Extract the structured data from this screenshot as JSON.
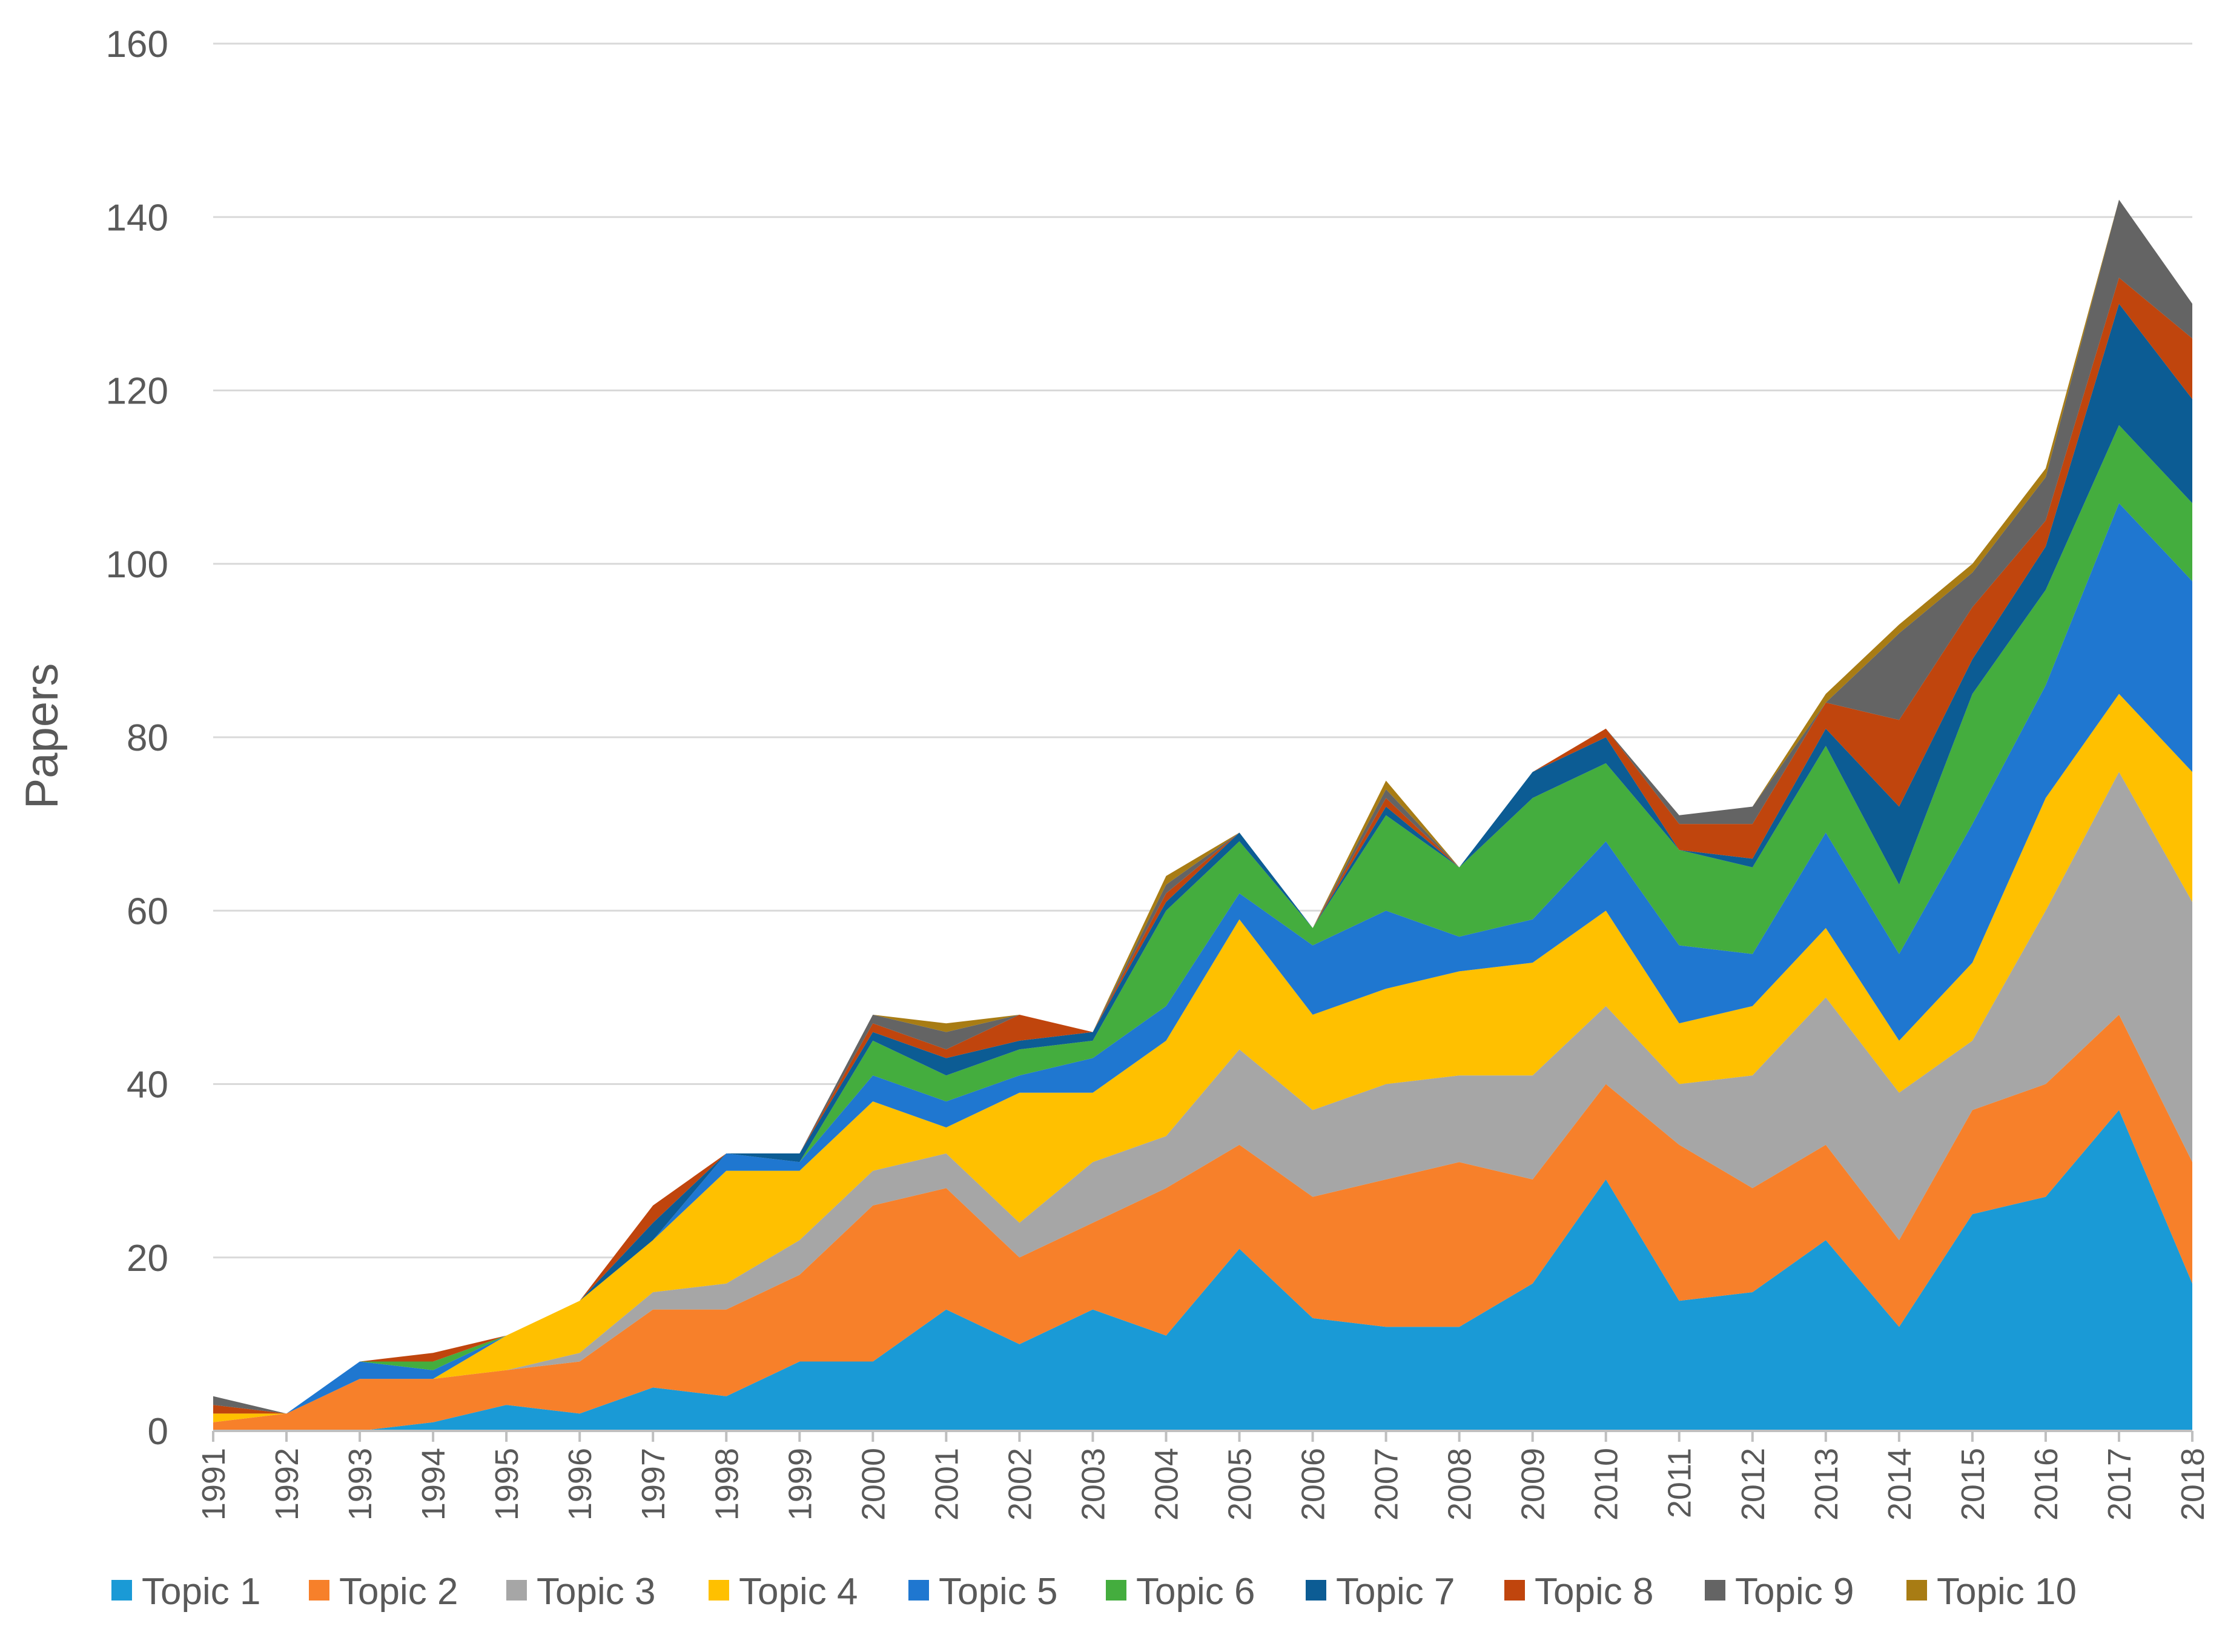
{
  "chart_data": {
    "type": "area",
    "stacked": true,
    "title": "",
    "xlabel": "",
    "ylabel": "Papers",
    "ylim": [
      0,
      160
    ],
    "yticks": [
      0,
      20,
      40,
      60,
      80,
      100,
      120,
      140,
      160
    ],
    "grid": true,
    "legend_position": "bottom",
    "categories": [
      "1991",
      "1992",
      "1993",
      "1994",
      "1995",
      "1996",
      "1997",
      "1998",
      "1999",
      "2000",
      "2001",
      "2002",
      "2003",
      "2004",
      "2005",
      "2006",
      "2007",
      "2008",
      "2009",
      "2010",
      "2011",
      "2012",
      "2013",
      "2014",
      "2015",
      "2016",
      "2017",
      "2018"
    ],
    "series": [
      {
        "name": "Topic 1",
        "color": "#1a9ad6",
        "values": [
          0,
          0,
          0,
          1,
          3,
          2,
          5,
          4,
          8,
          8,
          14,
          10,
          14,
          11,
          21,
          13,
          12,
          12,
          17,
          29,
          15,
          16,
          22,
          12,
          25,
          27,
          37,
          17
        ]
      },
      {
        "name": "Topic 2",
        "color": "#f7802a",
        "values": [
          1,
          2,
          6,
          5,
          4,
          6,
          9,
          10,
          10,
          18,
          14,
          10,
          10,
          17,
          12,
          14,
          17,
          19,
          12,
          11,
          18,
          12,
          11,
          10,
          12,
          13,
          11,
          14
        ]
      },
      {
        "name": "Topic 3",
        "color": "#a6a6a6",
        "values": [
          0,
          0,
          0,
          0,
          0,
          1,
          2,
          3,
          4,
          4,
          4,
          4,
          7,
          6,
          11,
          10,
          11,
          10,
          12,
          9,
          7,
          13,
          17,
          17,
          8,
          20,
          28,
          30
        ]
      },
      {
        "name": "Topic 4",
        "color": "#ffc000",
        "values": [
          1,
          0,
          0,
          0,
          4,
          6,
          6,
          13,
          8,
          8,
          3,
          15,
          8,
          11,
          15,
          11,
          11,
          12,
          13,
          11,
          7,
          8,
          8,
          6,
          9,
          13,
          9,
          15
        ]
      },
      {
        "name": "Topic 5",
        "color": "#1f77d0",
        "values": [
          0,
          0,
          2,
          1,
          0,
          0,
          0,
          2,
          1,
          3,
          3,
          2,
          4,
          4,
          3,
          8,
          9,
          4,
          5,
          8,
          9,
          6,
          11,
          10,
          16,
          13,
          22,
          22
        ]
      },
      {
        "name": "Topic 6",
        "color": "#44ad3e",
        "values": [
          0,
          0,
          0,
          1,
          0,
          0,
          0,
          0,
          0,
          4,
          3,
          3,
          2,
          11,
          6,
          2,
          11,
          8,
          14,
          9,
          11,
          10,
          10,
          8,
          15,
          11,
          9,
          9
        ]
      },
      {
        "name": "Topic 7",
        "color": "#0c5c94",
        "values": [
          0,
          0,
          0,
          0,
          0,
          0,
          2,
          0,
          1,
          1,
          2,
          1,
          1,
          1,
          1,
          0,
          1,
          0,
          3,
          3,
          0,
          1,
          2,
          9,
          4,
          5,
          14,
          12
        ]
      },
      {
        "name": "Topic 8",
        "color": "#c0450d",
        "values": [
          1,
          0,
          0,
          1,
          0,
          0,
          2,
          0,
          0,
          1,
          1,
          3,
          0,
          1,
          0,
          0,
          1,
          0,
          0,
          1,
          3,
          4,
          3,
          10,
          6,
          3,
          3,
          7
        ]
      },
      {
        "name": "Topic 9",
        "color": "#646464",
        "values": [
          1,
          0,
          0,
          0,
          0,
          0,
          0,
          0,
          0,
          1,
          2,
          0,
          0,
          1,
          0,
          0,
          1,
          0,
          0,
          0,
          1,
          2,
          0,
          10,
          4,
          5,
          9,
          4
        ]
      },
      {
        "name": "Topic 10",
        "color": "#a87c14",
        "values": [
          0,
          0,
          0,
          0,
          0,
          0,
          0,
          0,
          0,
          0,
          1,
          0,
          0,
          1,
          0,
          0,
          1,
          0,
          0,
          0,
          0,
          0,
          1,
          1,
          1,
          1,
          0,
          0
        ]
      }
    ]
  }
}
